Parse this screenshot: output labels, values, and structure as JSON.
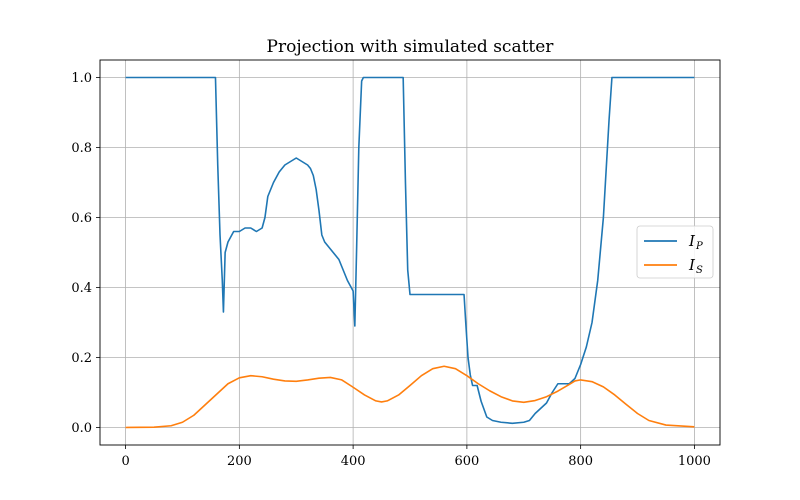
{
  "chart_data": {
    "type": "line",
    "title": "Projection with simulated scatter",
    "xlabel": "",
    "ylabel": "",
    "xlim": [
      -45,
      1045
    ],
    "ylim": [
      -0.05,
      1.05
    ],
    "xticks": [
      0,
      200,
      400,
      600,
      800,
      1000
    ],
    "yticks": [
      0.0,
      0.2,
      0.4,
      0.6,
      0.8,
      1.0
    ],
    "xtick_labels": [
      "0",
      "200",
      "400",
      "600",
      "800",
      "1000"
    ],
    "ytick_labels": [
      "0.0",
      "0.2",
      "0.4",
      "0.6",
      "0.8",
      "1.0"
    ],
    "grid": true,
    "legend_position": "center-right",
    "series": [
      {
        "name": "I_P",
        "legend_main": "I",
        "legend_sub": "P",
        "color": "#1f77b4",
        "x": [
          0,
          158,
          162,
          166,
          170,
          172,
          175,
          180,
          190,
          200,
          210,
          220,
          230,
          240,
          245,
          250,
          260,
          270,
          280,
          290,
          300,
          310,
          320,
          325,
          330,
          335,
          340,
          345,
          350,
          355,
          360,
          365,
          370,
          375,
          380,
          390,
          400,
          403,
          406,
          410,
          415,
          418,
          420,
          430,
          480,
          488,
          492,
          496,
          500,
          520,
          560,
          595,
          598,
          602,
          606,
          610,
          614,
          618,
          625,
          635,
          645,
          660,
          680,
          700,
          710,
          720,
          730,
          740,
          750,
          760,
          770,
          780,
          790,
          800,
          810,
          820,
          830,
          840,
          850,
          855,
          1000
        ],
        "y": [
          1.0,
          1.0,
          0.75,
          0.55,
          0.42,
          0.33,
          0.5,
          0.53,
          0.56,
          0.56,
          0.57,
          0.57,
          0.56,
          0.57,
          0.6,
          0.66,
          0.7,
          0.73,
          0.75,
          0.76,
          0.77,
          0.76,
          0.75,
          0.74,
          0.72,
          0.68,
          0.62,
          0.55,
          0.53,
          0.52,
          0.51,
          0.5,
          0.49,
          0.48,
          0.46,
          0.42,
          0.39,
          0.29,
          0.5,
          0.8,
          0.99,
          1.0,
          1.0,
          1.0,
          1.0,
          1.0,
          0.7,
          0.45,
          0.38,
          0.38,
          0.38,
          0.38,
          0.3,
          0.2,
          0.15,
          0.12,
          0.12,
          0.12,
          0.075,
          0.03,
          0.02,
          0.015,
          0.012,
          0.015,
          0.02,
          0.04,
          0.055,
          0.07,
          0.1,
          0.125,
          0.125,
          0.125,
          0.14,
          0.18,
          0.23,
          0.3,
          0.42,
          0.6,
          0.88,
          1.0,
          1.0
        ]
      },
      {
        "name": "I_S",
        "legend_main": "I",
        "legend_sub": "S",
        "color": "#ff7f0e",
        "x": [
          0,
          50,
          80,
          100,
          120,
          140,
          160,
          180,
          200,
          220,
          240,
          260,
          280,
          300,
          320,
          340,
          360,
          380,
          400,
          420,
          440,
          450,
          460,
          480,
          500,
          520,
          540,
          560,
          580,
          600,
          620,
          640,
          660,
          680,
          700,
          720,
          740,
          760,
          780,
          790,
          800,
          820,
          840,
          860,
          880,
          900,
          920,
          950,
          1000
        ],
        "y": [
          0.0,
          0.001,
          0.005,
          0.015,
          0.035,
          0.065,
          0.095,
          0.125,
          0.142,
          0.148,
          0.145,
          0.138,
          0.133,
          0.132,
          0.136,
          0.141,
          0.143,
          0.136,
          0.115,
          0.093,
          0.076,
          0.073,
          0.076,
          0.093,
          0.12,
          0.148,
          0.168,
          0.175,
          0.168,
          0.148,
          0.125,
          0.105,
          0.088,
          0.076,
          0.072,
          0.077,
          0.088,
          0.104,
          0.123,
          0.133,
          0.136,
          0.131,
          0.116,
          0.093,
          0.066,
          0.04,
          0.02,
          0.007,
          0.002
        ]
      }
    ]
  }
}
